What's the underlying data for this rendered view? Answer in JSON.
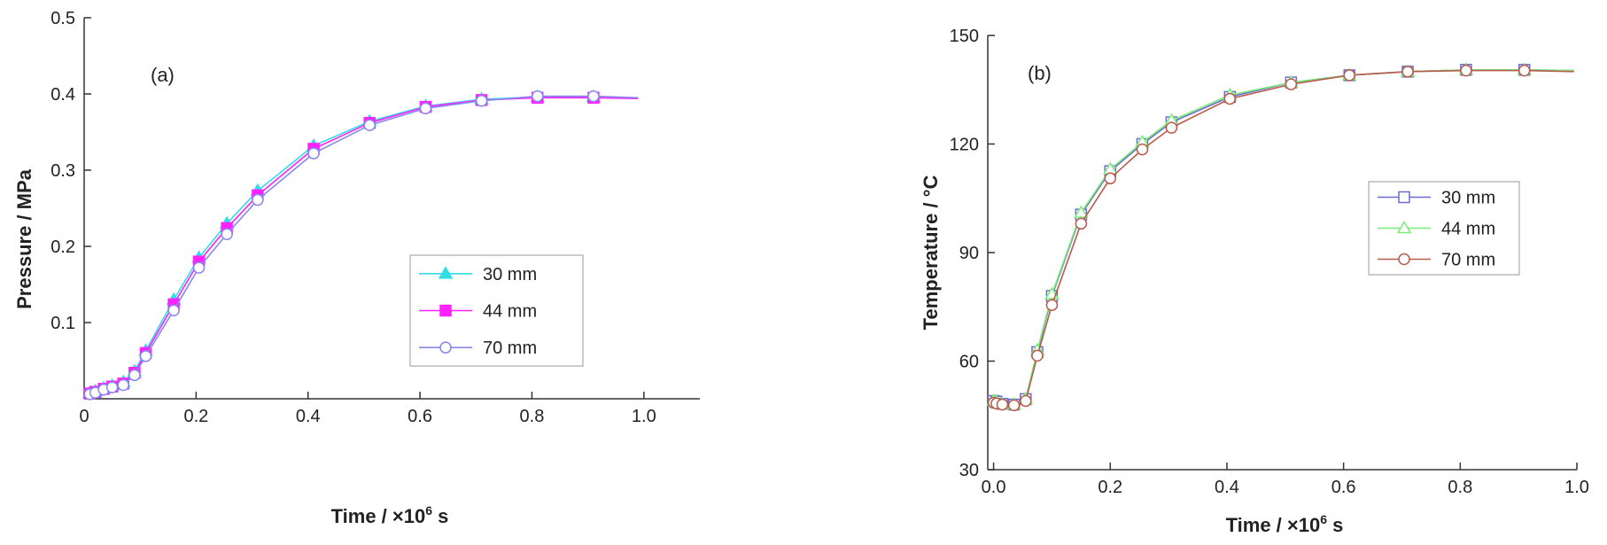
{
  "chart_data": [
    {
      "type": "line",
      "panel_label": "(a)",
      "ylabel": "Pressure / MPa",
      "xlabel": {
        "pre": "Time / ",
        "mult": "×10",
        "sup": "6",
        "post": " s"
      },
      "xlim": [
        0,
        1.1
      ],
      "ylim": [
        0,
        0.5
      ],
      "x_ticks": [
        0,
        0.2,
        0.4,
        0.6,
        0.8,
        1.0
      ],
      "x_tick_labels": [
        "0",
        "0.2",
        "0.4",
        "0.6",
        "0.8",
        "1.0"
      ],
      "y_ticks": [
        0.1,
        0.2,
        0.3,
        0.4,
        0.5
      ],
      "y_tick_labels": [
        "0.1",
        "0.2",
        "0.3",
        "0.4",
        "0.5"
      ],
      "legend_position": "center-right",
      "series": [
        {
          "name": "30 mm",
          "color": "#33dde6",
          "marker": "triangle-filled",
          "x": [
            0.01,
            0.02,
            0.035,
            0.05,
            0.07,
            0.09,
            0.11,
            0.16,
            0.205,
            0.255,
            0.31,
            0.41,
            0.51,
            0.61,
            0.71,
            0.81,
            0.91,
            0.99
          ],
          "y": [
            0.008,
            0.01,
            0.014,
            0.017,
            0.022,
            0.036,
            0.063,
            0.13,
            0.185,
            0.23,
            0.273,
            0.332,
            0.364,
            0.384,
            0.393,
            0.396,
            0.396,
            0.394
          ]
        },
        {
          "name": "44 mm",
          "color": "#ff22ff",
          "marker": "square-filled",
          "x": [
            0.01,
            0.02,
            0.035,
            0.05,
            0.07,
            0.09,
            0.11,
            0.16,
            0.205,
            0.255,
            0.31,
            0.41,
            0.51,
            0.61,
            0.71,
            0.81,
            0.91,
            0.99
          ],
          "y": [
            0.007,
            0.009,
            0.013,
            0.016,
            0.02,
            0.034,
            0.06,
            0.124,
            0.18,
            0.224,
            0.267,
            0.328,
            0.362,
            0.383,
            0.392,
            0.395,
            0.395,
            0.394
          ]
        },
        {
          "name": "70 mm",
          "color": "#8888ee",
          "marker": "circle-open",
          "x": [
            0.01,
            0.02,
            0.035,
            0.05,
            0.07,
            0.09,
            0.11,
            0.16,
            0.205,
            0.255,
            0.31,
            0.41,
            0.51,
            0.61,
            0.71,
            0.81,
            0.91,
            0.99
          ],
          "y": [
            0.006,
            0.008,
            0.012,
            0.015,
            0.018,
            0.031,
            0.056,
            0.116,
            0.172,
            0.216,
            0.261,
            0.322,
            0.359,
            0.381,
            0.391,
            0.397,
            0.397,
            0.395
          ]
        }
      ]
    },
    {
      "type": "line",
      "panel_label": "(b)",
      "ylabel": "Temperature / °C",
      "xlabel": {
        "pre": "Time / ",
        "mult": "×10",
        "sup": "6",
        "post": " s"
      },
      "xlim": [
        -0.01,
        1.0
      ],
      "ylim": [
        30,
        150
      ],
      "x_ticks": [
        0.0,
        0.2,
        0.4,
        0.6,
        0.8,
        1.0
      ],
      "x_tick_labels": [
        "0.0",
        "0.2",
        "0.4",
        "0.6",
        "0.8",
        "1.0"
      ],
      "y_ticks": [
        30,
        60,
        90,
        120,
        150
      ],
      "y_tick_labels": [
        "30",
        "60",
        "90",
        "120",
        "150"
      ],
      "legend_position": "center-right",
      "series": [
        {
          "name": "30 mm",
          "color": "#6b6bd0",
          "marker": "square-open",
          "x": [
            0.0,
            0.005,
            0.015,
            0.035,
            0.055,
            0.075,
            0.1,
            0.15,
            0.2,
            0.255,
            0.305,
            0.405,
            0.51,
            0.61,
            0.71,
            0.81,
            0.91,
            0.995
          ],
          "y": [
            49,
            48.8,
            48.2,
            48,
            49.5,
            62.5,
            78,
            100.5,
            112.5,
            120,
            126,
            133,
            137,
            139,
            140,
            140.5,
            140.5,
            140.3
          ]
        },
        {
          "name": "44 mm",
          "color": "#77ee77",
          "marker": "triangle-open",
          "x": [
            0.0,
            0.005,
            0.015,
            0.035,
            0.055,
            0.075,
            0.1,
            0.15,
            0.2,
            0.255,
            0.305,
            0.405,
            0.51,
            0.61,
            0.71,
            0.81,
            0.91,
            0.995
          ],
          "y": [
            49,
            48.8,
            48.2,
            48,
            49.5,
            63,
            78.5,
            101,
            113,
            120.5,
            126.5,
            133.5,
            137,
            139,
            140,
            140.5,
            140.5,
            140.3
          ]
        },
        {
          "name": "70 mm",
          "color": "#b85a4e",
          "marker": "circle-open",
          "x": [
            0.0,
            0.005,
            0.015,
            0.035,
            0.055,
            0.075,
            0.1,
            0.15,
            0.2,
            0.255,
            0.305,
            0.405,
            0.51,
            0.61,
            0.71,
            0.81,
            0.91,
            0.995
          ],
          "y": [
            48.5,
            48.3,
            48,
            47.8,
            49,
            61.5,
            75.5,
            98,
            110.5,
            118.5,
            124.5,
            132.5,
            136.5,
            139,
            140,
            140.3,
            140.3,
            140
          ]
        }
      ]
    }
  ]
}
